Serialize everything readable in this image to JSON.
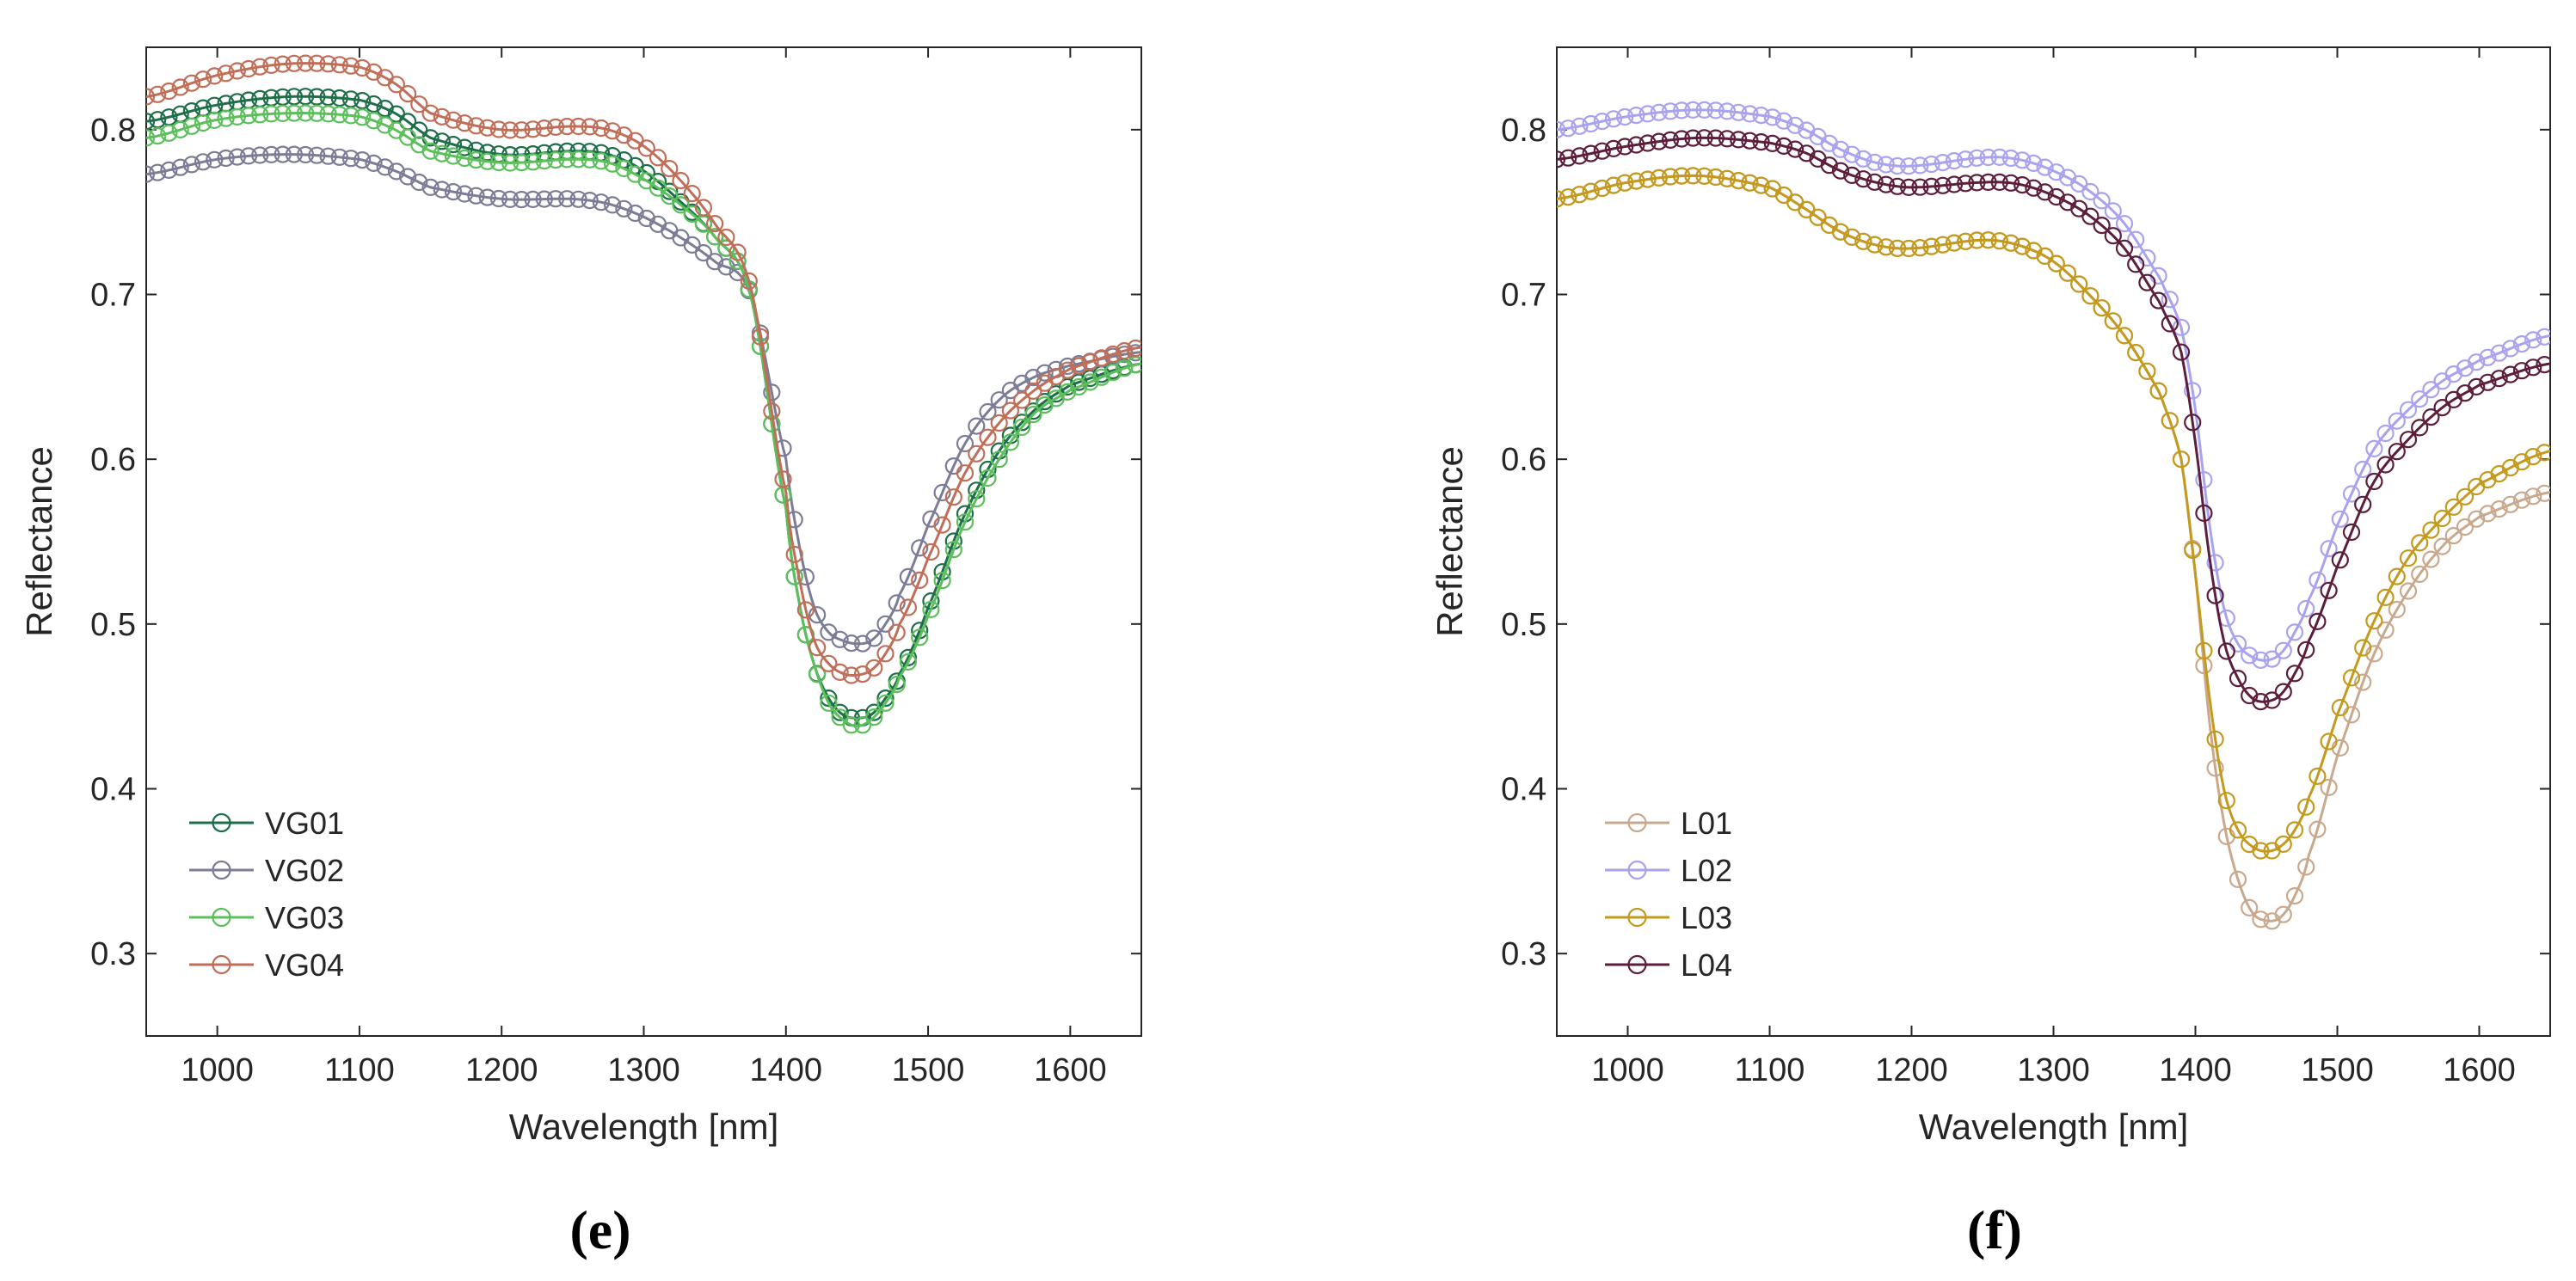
{
  "chart_data": [
    {
      "type": "line",
      "panel_label": "(e)",
      "xlabel": "Wavelength [nm]",
      "ylabel": "Reflectance",
      "xlim": [
        950,
        1650
      ],
      "ylim": [
        0.25,
        0.85
      ],
      "xticks": [
        1000,
        1100,
        1200,
        1300,
        1400,
        1500,
        1600
      ],
      "yticks": [
        0.3,
        0.4,
        0.5,
        0.6,
        0.7,
        0.8
      ],
      "marker": "circle",
      "grid": false,
      "legend_position": "bottom-left",
      "x": [
        950,
        1000,
        1050,
        1100,
        1125,
        1150,
        1200,
        1250,
        1275,
        1300,
        1325,
        1350,
        1375,
        1400,
        1410,
        1420,
        1430,
        1440,
        1450,
        1460,
        1470,
        1480,
        1500,
        1525,
        1550,
        1575,
        1600,
        1650
      ],
      "series": [
        {
          "name": "VG01",
          "color": "#1e6e4a",
          "values": [
            0.805,
            0.815,
            0.82,
            0.818,
            0.81,
            0.795,
            0.785,
            0.787,
            0.785,
            0.775,
            0.757,
            0.735,
            0.7,
            0.57,
            0.51,
            0.475,
            0.455,
            0.445,
            0.443,
            0.445,
            0.455,
            0.47,
            0.51,
            0.565,
            0.605,
            0.63,
            0.645,
            0.658
          ]
        },
        {
          "name": "VG02",
          "color": "#7c7c96",
          "values": [
            0.773,
            0.782,
            0.785,
            0.782,
            0.775,
            0.765,
            0.758,
            0.758,
            0.755,
            0.747,
            0.735,
            0.72,
            0.7,
            0.6,
            0.545,
            0.51,
            0.495,
            0.49,
            0.488,
            0.49,
            0.5,
            0.518,
            0.56,
            0.608,
            0.636,
            0.65,
            0.657,
            0.665
          ]
        },
        {
          "name": "VG03",
          "color": "#5cbf5c",
          "values": [
            0.795,
            0.806,
            0.81,
            0.808,
            0.8,
            0.787,
            0.78,
            0.782,
            0.78,
            0.77,
            0.755,
            0.735,
            0.7,
            0.57,
            0.51,
            0.475,
            0.452,
            0.442,
            0.438,
            0.442,
            0.452,
            0.468,
            0.505,
            0.56,
            0.6,
            0.628,
            0.642,
            0.658
          ]
        },
        {
          "name": "VG04",
          "color": "#c06e58",
          "values": [
            0.82,
            0.833,
            0.84,
            0.838,
            0.828,
            0.81,
            0.8,
            0.802,
            0.8,
            0.79,
            0.77,
            0.743,
            0.705,
            0.58,
            0.525,
            0.49,
            0.476,
            0.47,
            0.469,
            0.472,
            0.482,
            0.5,
            0.54,
            0.59,
            0.622,
            0.642,
            0.655,
            0.668
          ]
        }
      ]
    },
    {
      "type": "line",
      "panel_label": "(f)",
      "xlabel": "Wavelength [nm]",
      "ylabel": "Reflectance",
      "xlim": [
        950,
        1650
      ],
      "ylim": [
        0.25,
        0.85
      ],
      "xticks": [
        1000,
        1100,
        1200,
        1300,
        1400,
        1500,
        1600
      ],
      "yticks": [
        0.3,
        0.4,
        0.5,
        0.6,
        0.7,
        0.8
      ],
      "marker": "circle",
      "grid": false,
      "legend_position": "bottom-left",
      "x": [
        950,
        1000,
        1050,
        1100,
        1125,
        1150,
        1175,
        1200,
        1250,
        1275,
        1300,
        1325,
        1350,
        1375,
        1390,
        1400,
        1410,
        1420,
        1430,
        1440,
        1450,
        1460,
        1470,
        1480,
        1500,
        1525,
        1550,
        1575,
        1600,
        1650
      ],
      "series": [
        {
          "name": "L01",
          "color": "#c9a98e",
          "values": [
            0.758,
            0.768,
            0.772,
            0.765,
            0.752,
            0.738,
            0.73,
            0.728,
            0.733,
            0.73,
            0.72,
            0.7,
            0.675,
            0.64,
            0.6,
            0.53,
            0.44,
            0.38,
            0.345,
            0.325,
            0.32,
            0.322,
            0.335,
            0.36,
            0.42,
            0.48,
            0.52,
            0.548,
            0.565,
            0.58
          ]
        },
        {
          "name": "L02",
          "color": "#a9a2ee",
          "values": [
            0.8,
            0.808,
            0.812,
            0.808,
            0.8,
            0.788,
            0.78,
            0.778,
            0.783,
            0.782,
            0.775,
            0.763,
            0.743,
            0.71,
            0.68,
            0.63,
            0.56,
            0.51,
            0.488,
            0.48,
            0.478,
            0.482,
            0.495,
            0.515,
            0.56,
            0.605,
            0.63,
            0.648,
            0.66,
            0.675
          ]
        },
        {
          "name": "L03",
          "color": "#c49a1e",
          "values": [
            0.758,
            0.768,
            0.772,
            0.765,
            0.752,
            0.738,
            0.73,
            0.728,
            0.733,
            0.73,
            0.72,
            0.7,
            0.675,
            0.64,
            0.6,
            0.53,
            0.455,
            0.4,
            0.375,
            0.365,
            0.362,
            0.365,
            0.375,
            0.395,
            0.445,
            0.5,
            0.54,
            0.565,
            0.585,
            0.605
          ]
        },
        {
          "name": "L04",
          "color": "#5c1e3c",
          "values": [
            0.782,
            0.79,
            0.795,
            0.792,
            0.786,
            0.775,
            0.768,
            0.765,
            0.768,
            0.767,
            0.76,
            0.748,
            0.728,
            0.695,
            0.665,
            0.61,
            0.54,
            0.49,
            0.467,
            0.455,
            0.453,
            0.457,
            0.47,
            0.49,
            0.535,
            0.585,
            0.612,
            0.632,
            0.645,
            0.658
          ]
        }
      ]
    }
  ]
}
